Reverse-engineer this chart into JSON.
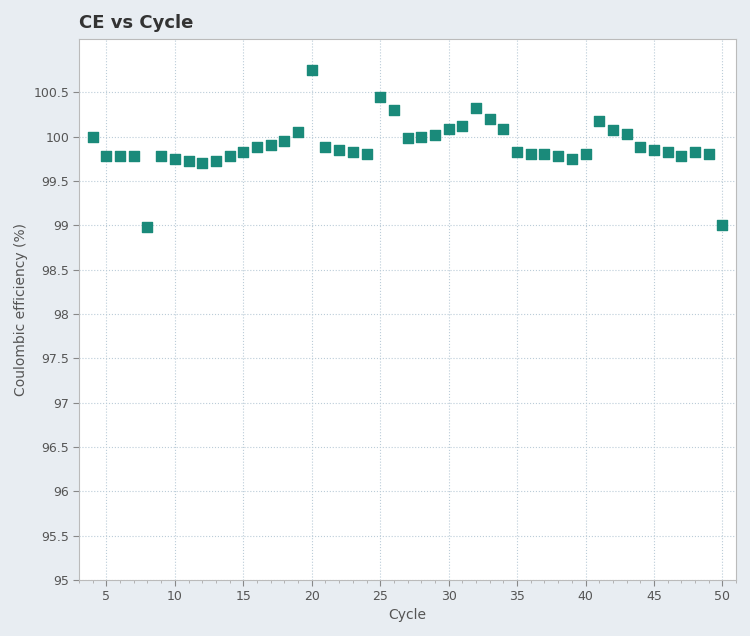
{
  "title": "CE vs Cycle",
  "xlabel": "Cycle",
  "ylabel": "Coulombic efficiency (%)",
  "xlim": [
    3,
    51
  ],
  "ylim": [
    95,
    101.1
  ],
  "xticks": [
    5,
    10,
    15,
    20,
    25,
    30,
    35,
    40,
    45,
    50
  ],
  "yticks": [
    95,
    95.5,
    96,
    96.5,
    97,
    97.5,
    98,
    98.5,
    99,
    99.5,
    100,
    100.5
  ],
  "cycles": [
    4,
    5,
    6,
    7,
    8,
    9,
    10,
    11,
    12,
    13,
    14,
    15,
    16,
    17,
    18,
    19,
    20,
    21,
    22,
    23,
    24,
    25,
    26,
    27,
    28,
    29,
    30,
    31,
    32,
    33,
    34,
    35,
    36,
    37,
    38,
    39,
    40,
    41,
    42,
    43,
    44,
    45,
    46,
    47,
    48,
    49,
    50
  ],
  "ce_values": [
    100.0,
    99.78,
    99.78,
    99.78,
    98.98,
    99.78,
    99.75,
    99.72,
    99.7,
    99.72,
    99.78,
    99.82,
    99.88,
    99.9,
    99.95,
    100.05,
    100.75,
    99.88,
    99.85,
    99.82,
    99.8,
    100.45,
    100.3,
    99.98,
    100.0,
    100.02,
    100.08,
    100.12,
    100.32,
    100.2,
    100.08,
    99.82,
    99.8,
    99.8,
    99.78,
    99.75,
    99.8,
    100.18,
    100.07,
    100.03,
    99.88,
    99.85,
    99.82,
    99.78,
    99.82,
    99.8,
    99.0
  ],
  "marker_color": "#1a8a7a",
  "marker_size": 55,
  "plot_bg_color": "#ffffff",
  "fig_bg_color": "#e8edf2",
  "grid_color": "#bbccd8",
  "title_fontsize": 13,
  "label_fontsize": 10,
  "tick_fontsize": 9,
  "title_color": "#333333",
  "label_color": "#555555",
  "tick_color": "#555555",
  "spine_color": "#bbbbbb"
}
